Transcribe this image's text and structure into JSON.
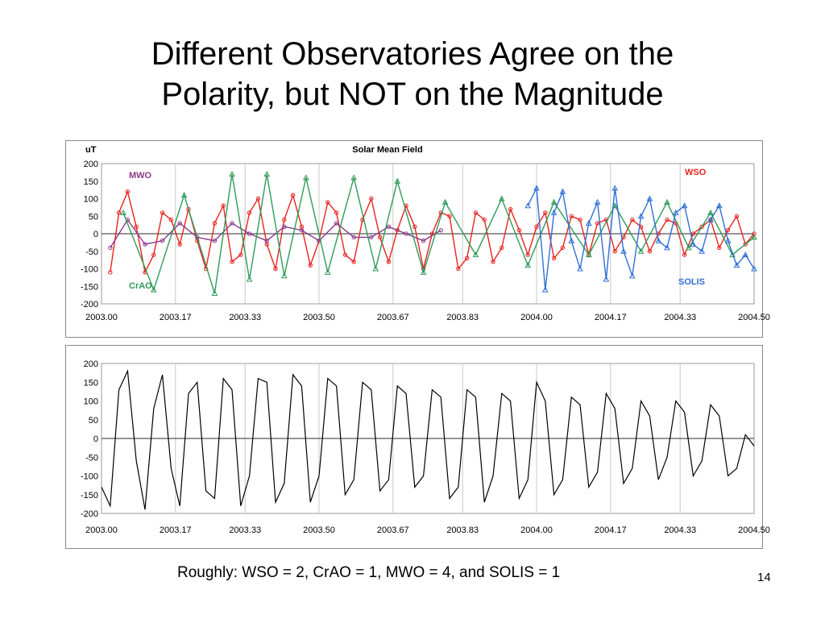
{
  "slide": {
    "title_line1": "Different Observatories Agree on the",
    "title_line2": "Polarity, but NOT on the Magnitude",
    "footnote": "Roughly: WSO = 2, CrAO = 1, MWO = 4, and SOLIS = 1",
    "page_number": "14"
  },
  "colors": {
    "WSO": "#e8231e",
    "MWO": "#8b3a8b",
    "CrAO": "#2e9b57",
    "SOLIS": "#2f6fd6",
    "composite": "#000000"
  },
  "chart_data": [
    {
      "type": "line",
      "title": "Solar Mean Field",
      "ylabel": "uT",
      "xlim": [
        2003.0,
        2004.5
      ],
      "ylim": [
        -200,
        200
      ],
      "xticks": [
        "2003.00",
        "2003.17",
        "2003.33",
        "2003.50",
        "2003.67",
        "2003.83",
        "2004.00",
        "2004.17",
        "2004.33",
        "2004.50"
      ],
      "yticks": [
        "200",
        "150",
        "100",
        "50",
        "0",
        "-50",
        "-100",
        "-150",
        "-200"
      ],
      "grid": "vertical",
      "series": [
        {
          "name": "WSO",
          "x": [
            2003.02,
            2003.04,
            2003.06,
            2003.08,
            2003.1,
            2003.12,
            2003.14,
            2003.16,
            2003.18,
            2003.2,
            2003.22,
            2003.24,
            2003.26,
            2003.28,
            2003.3,
            2003.32,
            2003.34,
            2003.36,
            2003.38,
            2003.4,
            2003.42,
            2003.44,
            2003.46,
            2003.48,
            2003.5,
            2003.52,
            2003.54,
            2003.56,
            2003.58,
            2003.6,
            2003.62,
            2003.64,
            2003.66,
            2003.68,
            2003.7,
            2003.72,
            2003.74,
            2003.76,
            2003.78,
            2003.8,
            2003.82,
            2003.84,
            2003.86,
            2003.88,
            2003.9,
            2003.92,
            2003.94,
            2003.96,
            2003.98,
            2004.0,
            2004.02,
            2004.04,
            2004.06,
            2004.08,
            2004.1,
            2004.12,
            2004.14,
            2004.16,
            2004.18,
            2004.2,
            2004.22,
            2004.24,
            2004.26,
            2004.28,
            2004.3,
            2004.32,
            2004.34,
            2004.36,
            2004.38,
            2004.4,
            2004.42,
            2004.44,
            2004.46,
            2004.48,
            2004.5
          ],
          "y": [
            -110,
            60,
            120,
            20,
            -110,
            -60,
            60,
            40,
            -30,
            70,
            -20,
            -100,
            30,
            80,
            -80,
            -60,
            60,
            100,
            -30,
            -100,
            40,
            110,
            20,
            -90,
            -20,
            90,
            60,
            -60,
            -80,
            40,
            100,
            -10,
            -80,
            10,
            80,
            20,
            -100,
            0,
            60,
            50,
            -100,
            -70,
            60,
            40,
            -80,
            -40,
            70,
            10,
            -60,
            20,
            60,
            -70,
            -40,
            50,
            40,
            -60,
            30,
            40,
            -50,
            -10,
            40,
            20,
            -50,
            0,
            40,
            30,
            -60,
            0,
            20,
            40,
            -40,
            10,
            50,
            -30,
            0
          ]
        },
        {
          "name": "MWO",
          "x": [
            2003.02,
            2003.06,
            2003.1,
            2003.14,
            2003.18,
            2003.22,
            2003.26,
            2003.3,
            2003.34,
            2003.38,
            2003.42,
            2003.46,
            2003.5,
            2003.54,
            2003.58,
            2003.62,
            2003.66,
            2003.7,
            2003.74,
            2003.78
          ],
          "y": [
            -40,
            40,
            -30,
            -20,
            30,
            -10,
            -20,
            30,
            0,
            -20,
            20,
            10,
            -20,
            30,
            -10,
            -10,
            20,
            0,
            -20,
            10
          ]
        },
        {
          "name": "CrAO",
          "x": [
            2003.05,
            2003.12,
            2003.19,
            2003.26,
            2003.3,
            2003.34,
            2003.38,
            2003.42,
            2003.47,
            2003.52,
            2003.58,
            2003.63,
            2003.68,
            2003.74,
            2003.79,
            2003.86,
            2003.92,
            2003.98,
            2004.04,
            2004.12,
            2004.18,
            2004.24,
            2004.3,
            2004.35,
            2004.4,
            2004.45,
            2004.5
          ],
          "y": [
            60,
            -160,
            110,
            -170,
            170,
            -130,
            170,
            -120,
            160,
            -110,
            160,
            -100,
            150,
            -110,
            90,
            -60,
            100,
            -90,
            90,
            -60,
            80,
            -50,
            90,
            -40,
            60,
            -60,
            -10
          ]
        },
        {
          "name": "SOLIS",
          "x": [
            2003.98,
            2004.0,
            2004.02,
            2004.04,
            2004.06,
            2004.08,
            2004.1,
            2004.12,
            2004.14,
            2004.16,
            2004.18,
            2004.2,
            2004.22,
            2004.24,
            2004.26,
            2004.28,
            2004.3,
            2004.32,
            2004.34,
            2004.36,
            2004.38,
            2004.4,
            2004.42,
            2004.44,
            2004.46,
            2004.48,
            2004.5
          ],
          "y": [
            80,
            130,
            -160,
            60,
            120,
            -20,
            -100,
            30,
            90,
            -130,
            130,
            -50,
            -120,
            50,
            100,
            -20,
            -40,
            60,
            80,
            -30,
            -50,
            40,
            80,
            -20,
            -90,
            -60,
            -100
          ]
        }
      ],
      "labels": [
        "MWO",
        "WSO",
        "CrAO",
        "SOLIS"
      ]
    },
    {
      "type": "line",
      "title": "",
      "ylabel": "",
      "xlim": [
        2003.0,
        2004.5
      ],
      "ylim": [
        -200,
        200
      ],
      "xticks": [
        "2003.00",
        "2003.17",
        "2003.33",
        "2003.50",
        "2003.67",
        "2003.83",
        "2004.00",
        "2004.17",
        "2004.33",
        "2004.50"
      ],
      "yticks": [
        "200",
        "150",
        "100",
        "50",
        "0",
        "-50",
        "-100",
        "-150",
        "-200"
      ],
      "grid": "vertical",
      "series": [
        {
          "name": "composite",
          "x": [
            2003.0,
            2003.02,
            2003.04,
            2003.06,
            2003.08,
            2003.1,
            2003.12,
            2003.14,
            2003.16,
            2003.18,
            2003.2,
            2003.22,
            2003.24,
            2003.26,
            2003.28,
            2003.3,
            2003.32,
            2003.34,
            2003.36,
            2003.38,
            2003.4,
            2003.42,
            2003.44,
            2003.46,
            2003.48,
            2003.5,
            2003.52,
            2003.54,
            2003.56,
            2003.58,
            2003.6,
            2003.62,
            2003.64,
            2003.66,
            2003.68,
            2003.7,
            2003.72,
            2003.74,
            2003.76,
            2003.78,
            2003.8,
            2003.82,
            2003.84,
            2003.86,
            2003.88,
            2003.9,
            2003.92,
            2003.94,
            2003.96,
            2003.98,
            2004.0,
            2004.02,
            2004.04,
            2004.06,
            2004.08,
            2004.1,
            2004.12,
            2004.14,
            2004.16,
            2004.18,
            2004.2,
            2004.22,
            2004.24,
            2004.26,
            2004.28,
            2004.3,
            2004.32,
            2004.34,
            2004.36,
            2004.38,
            2004.4,
            2004.42,
            2004.44,
            2004.46,
            2004.48,
            2004.5
          ],
          "y": [
            -130,
            -180,
            130,
            180,
            -60,
            -190,
            80,
            170,
            -80,
            -180,
            120,
            150,
            -140,
            -160,
            160,
            130,
            -180,
            -100,
            160,
            150,
            -170,
            -120,
            170,
            140,
            -170,
            -100,
            160,
            140,
            -150,
            -110,
            150,
            130,
            -140,
            -110,
            140,
            120,
            -130,
            -100,
            130,
            110,
            -160,
            -130,
            130,
            110,
            -170,
            -100,
            120,
            100,
            -160,
            -110,
            150,
            100,
            -150,
            -110,
            110,
            90,
            -130,
            -90,
            120,
            80,
            -120,
            -80,
            100,
            60,
            -110,
            -50,
            100,
            70,
            -100,
            -60,
            90,
            60,
            -100,
            -80,
            10,
            -20
          ]
        }
      ]
    }
  ]
}
